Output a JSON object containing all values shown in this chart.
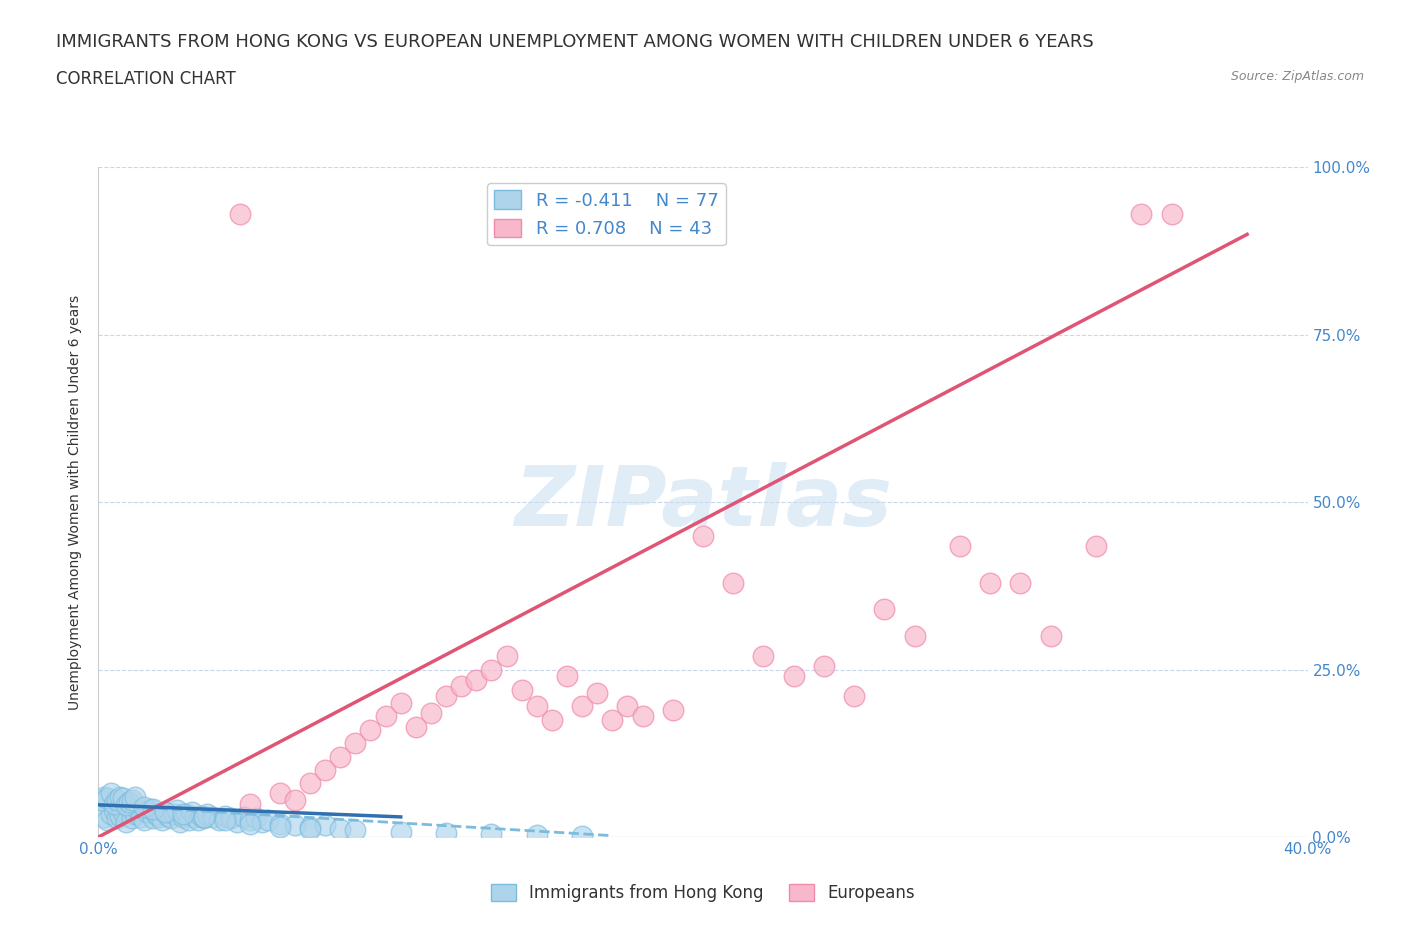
{
  "title": "IMMIGRANTS FROM HONG KONG VS EUROPEAN UNEMPLOYMENT AMONG WOMEN WITH CHILDREN UNDER 6 YEARS",
  "subtitle": "CORRELATION CHART",
  "source": "Source: ZipAtlas.com",
  "ylabel": "Unemployment Among Women with Children Under 6 years",
  "xlim": [
    0,
    0.4
  ],
  "ylim": [
    0,
    1.0
  ],
  "xticks": [
    0.0,
    0.05,
    0.1,
    0.15,
    0.2,
    0.25,
    0.3,
    0.35,
    0.4
  ],
  "yticks": [
    0.0,
    0.25,
    0.5,
    0.75,
    1.0
  ],
  "blue_color": "#7bbcde",
  "blue_fill": "#aed4ec",
  "pink_color": "#f08aaa",
  "pink_fill": "#f8b8cc",
  "R_blue": -0.411,
  "N_blue": 77,
  "R_pink": 0.708,
  "N_pink": 43,
  "legend_label_blue": "Immigrants from Hong Kong",
  "legend_label_pink": "Europeans",
  "title_fontsize": 13,
  "subtitle_fontsize": 12,
  "axis_label_fontsize": 10,
  "tick_fontsize": 11,
  "blue_x": [
    0.002,
    0.003,
    0.004,
    0.005,
    0.006,
    0.007,
    0.008,
    0.009,
    0.01,
    0.011,
    0.012,
    0.013,
    0.014,
    0.015,
    0.016,
    0.017,
    0.018,
    0.019,
    0.02,
    0.021,
    0.022,
    0.023,
    0.024,
    0.025,
    0.026,
    0.027,
    0.028,
    0.029,
    0.03,
    0.031,
    0.032,
    0.033,
    0.034,
    0.035,
    0.036,
    0.038,
    0.04,
    0.042,
    0.044,
    0.046,
    0.048,
    0.05,
    0.052,
    0.054,
    0.056,
    0.06,
    0.065,
    0.07,
    0.075,
    0.08,
    0.001,
    0.002,
    0.003,
    0.004,
    0.005,
    0.006,
    0.007,
    0.008,
    0.009,
    0.01,
    0.011,
    0.012,
    0.015,
    0.018,
    0.022,
    0.028,
    0.035,
    0.042,
    0.05,
    0.06,
    0.07,
    0.085,
    0.1,
    0.115,
    0.13,
    0.145,
    0.16
  ],
  "blue_y": [
    0.03,
    0.025,
    0.035,
    0.04,
    0.028,
    0.032,
    0.038,
    0.022,
    0.045,
    0.028,
    0.035,
    0.04,
    0.03,
    0.025,
    0.038,
    0.042,
    0.028,
    0.035,
    0.03,
    0.025,
    0.038,
    0.032,
    0.028,
    0.035,
    0.04,
    0.022,
    0.03,
    0.035,
    0.025,
    0.038,
    0.03,
    0.025,
    0.032,
    0.028,
    0.035,
    0.03,
    0.025,
    0.032,
    0.028,
    0.022,
    0.03,
    0.025,
    0.028,
    0.022,
    0.025,
    0.02,
    0.018,
    0.015,
    0.018,
    0.012,
    0.055,
    0.06,
    0.058,
    0.065,
    0.05,
    0.055,
    0.06,
    0.058,
    0.048,
    0.052,
    0.055,
    0.06,
    0.045,
    0.042,
    0.038,
    0.035,
    0.03,
    0.025,
    0.02,
    0.015,
    0.012,
    0.01,
    0.008,
    0.006,
    0.005,
    0.003,
    0.002
  ],
  "pink_x": [
    0.05,
    0.06,
    0.065,
    0.07,
    0.075,
    0.08,
    0.085,
    0.09,
    0.095,
    0.1,
    0.105,
    0.11,
    0.115,
    0.12,
    0.125,
    0.13,
    0.135,
    0.14,
    0.145,
    0.15,
    0.155,
    0.16,
    0.165,
    0.17,
    0.175,
    0.18,
    0.19,
    0.2,
    0.21,
    0.22,
    0.23,
    0.24,
    0.25,
    0.26,
    0.27,
    0.285,
    0.295,
    0.305,
    0.315,
    0.33,
    0.345,
    0.355,
    0.047
  ],
  "pink_y": [
    0.05,
    0.065,
    0.055,
    0.08,
    0.1,
    0.12,
    0.14,
    0.16,
    0.18,
    0.2,
    0.165,
    0.185,
    0.21,
    0.225,
    0.235,
    0.25,
    0.27,
    0.22,
    0.195,
    0.175,
    0.24,
    0.195,
    0.215,
    0.175,
    0.195,
    0.18,
    0.19,
    0.45,
    0.38,
    0.27,
    0.24,
    0.255,
    0.21,
    0.34,
    0.3,
    0.435,
    0.38,
    0.38,
    0.3,
    0.435,
    0.93,
    0.93,
    0.93
  ]
}
